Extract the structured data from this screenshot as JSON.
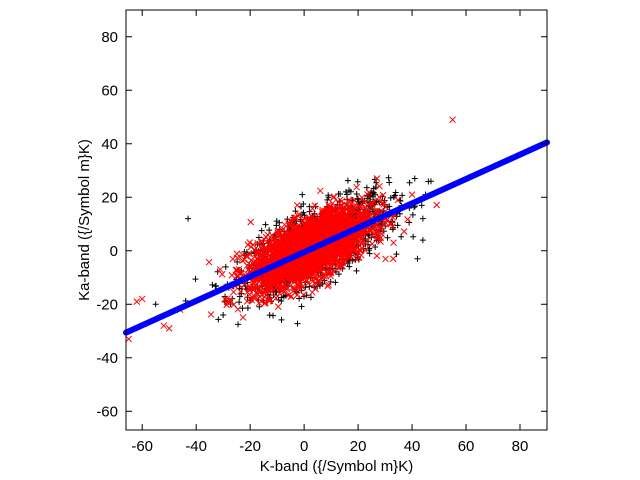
{
  "chart_data": {
    "type": "scatter",
    "title": "",
    "xlabel": "K-band ({/Symbol m}K)",
    "ylabel": "Ka-band ({/Symbol m}K)",
    "xlim": [
      -66,
      90
    ],
    "ylim": [
      -67,
      90
    ],
    "xticks": [
      -60,
      -40,
      -20,
      0,
      20,
      40,
      60,
      80
    ],
    "yticks": [
      -60,
      -40,
      -20,
      0,
      20,
      40,
      60,
      80
    ],
    "grid": false,
    "legend": "none",
    "series": [
      {
        "marker": "plus",
        "color": "#000000",
        "cloud": {
          "x_mean": 5,
          "x_sd": 13,
          "y_slope": 0.45,
          "y_resid_sd": 6.5,
          "count": 1400
        },
        "points": [
          [
            -43,
            12
          ],
          [
            -55,
            -20
          ],
          [
            47,
            26
          ],
          [
            41,
            27
          ],
          [
            45,
            21
          ],
          [
            44,
            12
          ],
          [
            44,
            4
          ],
          [
            42,
            -3
          ],
          [
            39,
            16
          ],
          [
            -30,
            -24
          ]
        ]
      },
      {
        "marker": "cross",
        "color": "#ff0000",
        "cloud": {
          "x_mean": 2,
          "x_sd": 11,
          "y_slope": 0.45,
          "y_resid_sd": 5.5,
          "count": 2600
        },
        "points": [
          [
            55,
            49
          ],
          [
            -65,
            -33
          ],
          [
            -60,
            -18
          ],
          [
            -62,
            -19
          ],
          [
            -50,
            -29
          ],
          [
            -46,
            -22
          ],
          [
            -52,
            -28
          ],
          [
            27,
            27
          ],
          [
            33,
            -3
          ],
          [
            40,
            21
          ]
        ]
      },
      {
        "marker": "line",
        "color": "#0000ff",
        "points": [
          [
            -66,
            -30.6
          ],
          [
            90,
            40.5
          ]
        ]
      }
    ]
  }
}
